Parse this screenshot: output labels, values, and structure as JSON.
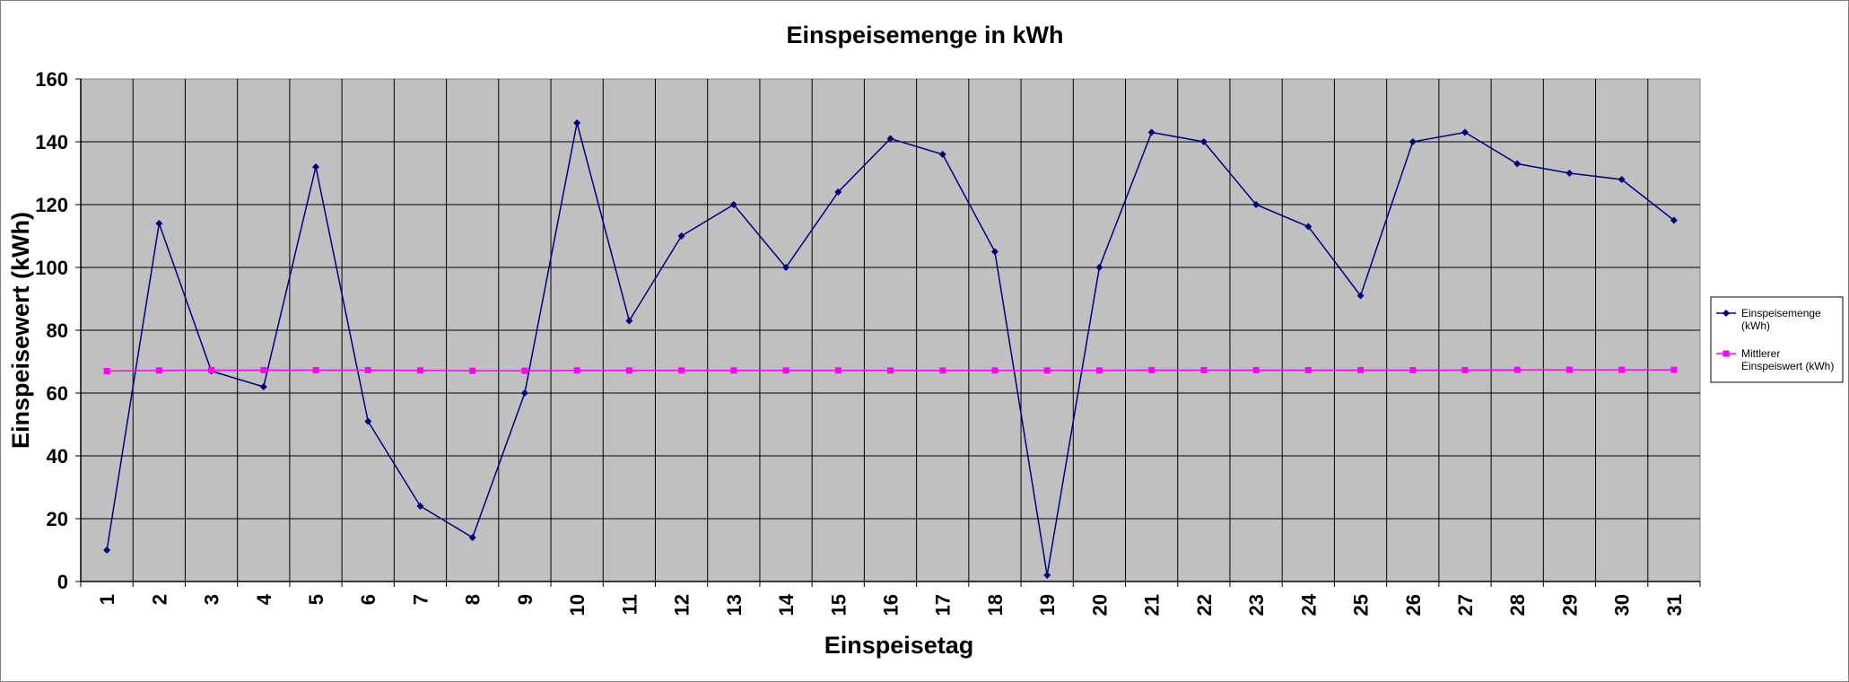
{
  "chart_data": {
    "type": "line",
    "title": "Einspeisemenge in kWh",
    "xlabel": "Einspeisetag",
    "ylabel": "Einspeisewert  (kWh)",
    "ylim": [
      0,
      160
    ],
    "yticks": [
      0,
      20,
      40,
      60,
      80,
      100,
      120,
      140,
      160
    ],
    "grid": true,
    "legend_position": "right",
    "plot_background": "#c0c0c0",
    "categories": [
      "1",
      "2",
      "3",
      "4",
      "5",
      "6",
      "7",
      "8",
      "9",
      "10",
      "11",
      "12",
      "13",
      "14",
      "15",
      "16",
      "17",
      "18",
      "19",
      "20",
      "21",
      "22",
      "23",
      "24",
      "25",
      "26",
      "27",
      "28",
      "29",
      "30",
      "31"
    ],
    "series": [
      {
        "name": "Einspeisemenge (kWh)",
        "legend_lines": [
          "Einspeisemenge",
          "(kWh)"
        ],
        "color": "#000080",
        "marker": "diamond",
        "values": [
          10,
          114,
          67,
          62,
          132,
          51,
          24,
          14,
          60,
          146,
          83,
          110,
          120,
          100,
          124,
          141,
          136,
          105,
          2,
          100,
          143,
          140,
          120,
          113,
          91,
          140,
          143,
          133,
          130,
          128,
          115
        ]
      },
      {
        "name": "Mittlerer Einspeiswert (kWh)",
        "legend_lines": [
          "Mittlerer",
          "Einspeiswert (kWh)"
        ],
        "color": "#ff00ff",
        "marker": "square",
        "values": [
          67,
          67.2,
          67.3,
          67.3,
          67.3,
          67.3,
          67.2,
          67.1,
          67.1,
          67.2,
          67.2,
          67.2,
          67.2,
          67.2,
          67.2,
          67.2,
          67.2,
          67.2,
          67.2,
          67.2,
          67.3,
          67.3,
          67.3,
          67.3,
          67.3,
          67.3,
          67.3,
          67.4,
          67.4,
          67.4,
          67.4
        ]
      }
    ]
  }
}
